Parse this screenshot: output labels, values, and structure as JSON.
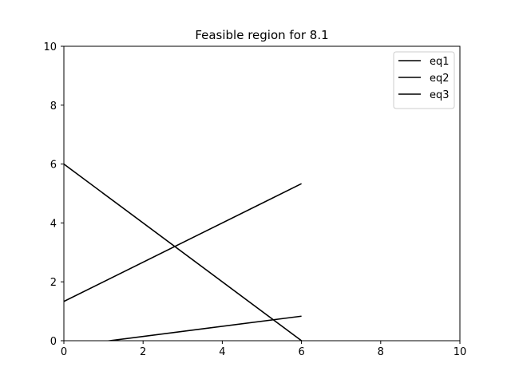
{
  "chart_data": {
    "type": "line",
    "title": "Feasible region for 8.1",
    "xlabel": "",
    "ylabel": "",
    "xlim": [
      0,
      10
    ],
    "ylim": [
      0,
      10
    ],
    "xticks": [
      "0",
      "2",
      "4",
      "6",
      "8",
      "10"
    ],
    "yticks": [
      "0",
      "2",
      "4",
      "6",
      "8",
      "10"
    ],
    "grid": false,
    "legend_position": "top-right",
    "series": [
      {
        "name": "eq1",
        "color": "#000000",
        "points": [
          [
            0,
            6
          ],
          [
            6,
            0
          ]
        ]
      },
      {
        "name": "eq2",
        "color": "#000000",
        "points": [
          [
            0,
            1.333
          ],
          [
            6,
            5.333
          ]
        ]
      },
      {
        "name": "eq3",
        "color": "#000000",
        "points": [
          [
            0,
            -0.2
          ],
          [
            6,
            0.833
          ]
        ]
      }
    ]
  }
}
